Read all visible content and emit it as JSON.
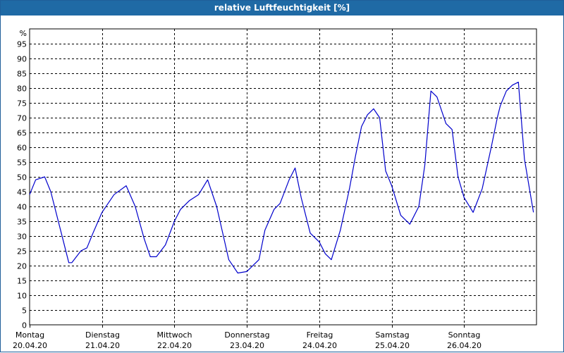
{
  "window": {
    "title": "relative Luftfeuchtigkeit [%]"
  },
  "chart_data": {
    "type": "line",
    "title": "relative Luftfeuchtigkeit [%]",
    "ylabel": "%",
    "ylim": [
      0,
      100
    ],
    "yticks": [
      0,
      5,
      10,
      15,
      20,
      25,
      30,
      35,
      40,
      45,
      50,
      55,
      60,
      65,
      70,
      75,
      80,
      85,
      90,
      95
    ],
    "grid": true,
    "day_labels": [
      {
        "day": "Montag",
        "date": "20.04.20"
      },
      {
        "day": "Dienstag",
        "date": "21.04.20"
      },
      {
        "day": "Mittwoch",
        "date": "22.04.20"
      },
      {
        "day": "Donnerstag",
        "date": "23.04.20"
      },
      {
        "day": "Freitag",
        "date": "24.04.20"
      },
      {
        "day": "Samstag",
        "date": "25.04.20"
      },
      {
        "day": "Sonntag",
        "date": "26.04.20"
      }
    ],
    "series": [
      {
        "color": "#0000cc",
        "x": [
          "2020-04-20 00:00",
          "2020-04-20 02:00",
          "2020-04-20 05:00",
          "2020-04-20 07:00",
          "2020-04-20 11:00",
          "2020-04-20 13:00",
          "2020-04-20 14:00",
          "2020-04-20 17:00",
          "2020-04-20 19:00",
          "2020-04-20 21:00",
          "2020-04-21 00:00",
          "2020-04-21 04:00",
          "2020-04-21 08:00",
          "2020-04-21 11:00",
          "2020-04-21 14:00",
          "2020-04-21 16:00",
          "2020-04-21 18:00",
          "2020-04-21 21:00",
          "2020-04-22 00:00",
          "2020-04-22 02:00",
          "2020-04-22 05:00",
          "2020-04-22 08:00",
          "2020-04-22 11:00",
          "2020-04-22 14:00",
          "2020-04-22 16:00",
          "2020-04-22 18:00",
          "2020-04-22 21:00",
          "2020-04-23 00:00",
          "2020-04-23 04:00",
          "2020-04-23 06:00",
          "2020-04-23 09:00",
          "2020-04-23 11:00",
          "2020-04-23 14:00",
          "2020-04-23 16:00",
          "2020-04-23 18:00",
          "2020-04-23 21:00",
          "2020-04-24 00:00",
          "2020-04-24 02:00",
          "2020-04-24 04:00",
          "2020-04-24 07:00",
          "2020-04-24 10:00",
          "2020-04-24 12:00",
          "2020-04-24 14:00",
          "2020-04-24 16:00",
          "2020-04-24 18:00",
          "2020-04-24 20:00",
          "2020-04-24 22:00",
          "2020-04-25 00:00",
          "2020-04-25 03:00",
          "2020-04-25 06:00",
          "2020-04-25 09:00",
          "2020-04-25 11:00",
          "2020-04-25 13:00",
          "2020-04-25 15:00",
          "2020-04-25 18:00",
          "2020-04-25 20:00",
          "2020-04-25 22:00",
          "2020-04-26 00:00",
          "2020-04-26 03:00",
          "2020-04-26 06:00",
          "2020-04-26 09:00",
          "2020-04-26 11:00",
          "2020-04-26 12:00",
          "2020-04-26 14:00",
          "2020-04-26 16:00",
          "2020-04-26 18:00",
          "2020-04-26 20:00",
          "2020-04-26 22:00",
          "2020-04-26 23:00"
        ],
        "y": [
          44,
          49,
          50,
          45,
          29,
          21,
          21,
          25,
          26,
          31,
          38,
          44,
          47,
          40,
          29,
          23,
          23,
          27,
          35,
          39,
          42,
          44,
          49,
          40,
          31,
          22,
          17.5,
          18,
          22,
          32,
          39,
          41,
          49,
          53,
          43,
          31,
          28,
          24,
          22,
          32,
          46,
          57,
          67,
          71,
          73,
          70,
          52,
          47,
          37,
          34,
          40,
          54,
          79,
          77,
          68,
          66,
          50,
          43,
          38,
          46,
          60,
          70,
          74,
          79,
          81,
          82,
          56,
          44,
          38
        ]
      }
    ]
  }
}
